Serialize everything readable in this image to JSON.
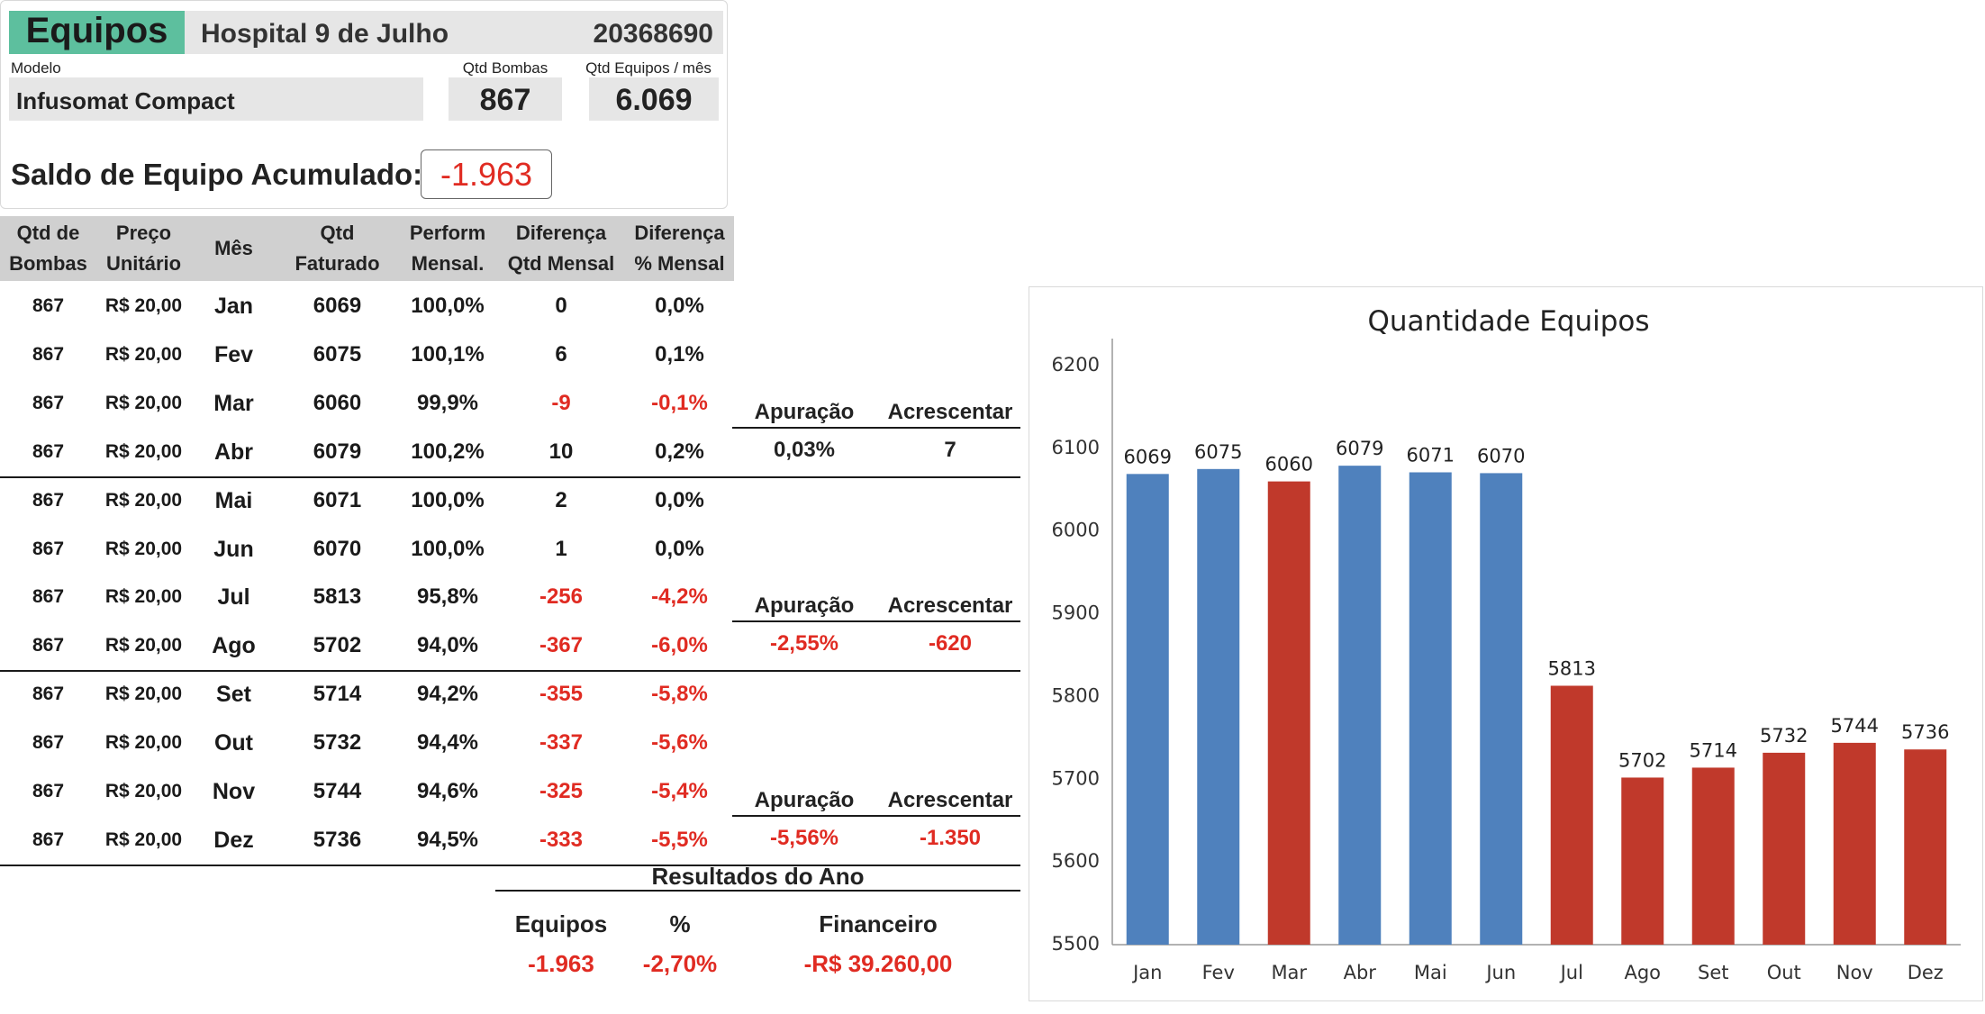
{
  "header": {
    "title": "Equipos",
    "hospital": "Hospital 9 de Julho",
    "code": "20368690",
    "modelo_label": "Modelo",
    "modelo_value": "Infusomat Compact",
    "qtd_bombas_label": "Qtd Bombas",
    "qtd_bombas_value": "867",
    "qtd_equipos_label": "Qtd Equipos / mês",
    "qtd_equipos_value": "6.069",
    "saldo_label": "Saldo de Equipo Acumulado:",
    "saldo_value": "-1.963"
  },
  "table": {
    "headers": [
      [
        "Qtd de",
        "Bombas"
      ],
      [
        "Preço",
        "Unitário"
      ],
      [
        "Mês"
      ],
      [
        "Qtd",
        "Faturado"
      ],
      [
        "Perform",
        "Mensal."
      ],
      [
        "Diferença",
        "Qtd Mensal"
      ],
      [
        "Diferença",
        "% Mensal"
      ]
    ],
    "rows": [
      {
        "bombas": "867",
        "preco": "R$ 20,00",
        "mes": "Jan",
        "qtd": "6069",
        "perf": "100,0%",
        "dif": "0",
        "difp": "0,0%",
        "neg": false
      },
      {
        "bombas": "867",
        "preco": "R$ 20,00",
        "mes": "Fev",
        "qtd": "6075",
        "perf": "100,1%",
        "dif": "6",
        "difp": "0,1%",
        "neg": false
      },
      {
        "bombas": "867",
        "preco": "R$ 20,00",
        "mes": "Mar",
        "qtd": "6060",
        "perf": "99,9%",
        "dif": "-9",
        "difp": "-0,1%",
        "neg": true
      },
      {
        "bombas": "867",
        "preco": "R$ 20,00",
        "mes": "Abr",
        "qtd": "6079",
        "perf": "100,2%",
        "dif": "10",
        "difp": "0,2%",
        "neg": false
      },
      {
        "bombas": "867",
        "preco": "R$ 20,00",
        "mes": "Mai",
        "qtd": "6071",
        "perf": "100,0%",
        "dif": "2",
        "difp": "0,0%",
        "neg": false
      },
      {
        "bombas": "867",
        "preco": "R$ 20,00",
        "mes": "Jun",
        "qtd": "6070",
        "perf": "100,0%",
        "dif": "1",
        "difp": "0,0%",
        "neg": false
      },
      {
        "bombas": "867",
        "preco": "R$ 20,00",
        "mes": "Jul",
        "qtd": "5813",
        "perf": "95,8%",
        "dif": "-256",
        "difp": "-4,2%",
        "neg": true
      },
      {
        "bombas": "867",
        "preco": "R$ 20,00",
        "mes": "Ago",
        "qtd": "5702",
        "perf": "94,0%",
        "dif": "-367",
        "difp": "-6,0%",
        "neg": true
      },
      {
        "bombas": "867",
        "preco": "R$ 20,00",
        "mes": "Set",
        "qtd": "5714",
        "perf": "94,2%",
        "dif": "-355",
        "difp": "-5,8%",
        "neg": true
      },
      {
        "bombas": "867",
        "preco": "R$ 20,00",
        "mes": "Out",
        "qtd": "5732",
        "perf": "94,4%",
        "dif": "-337",
        "difp": "-5,6%",
        "neg": true
      },
      {
        "bombas": "867",
        "preco": "R$ 20,00",
        "mes": "Nov",
        "qtd": "5744",
        "perf": "94,6%",
        "dif": "-325",
        "difp": "-5,4%",
        "neg": true
      },
      {
        "bombas": "867",
        "preco": "R$ 20,00",
        "mes": "Dez",
        "qtd": "5736",
        "perf": "94,5%",
        "dif": "-333",
        "difp": "-5,5%",
        "neg": true
      }
    ]
  },
  "quarters": [
    {
      "apuracao_label": "Apuração",
      "acrescentar_label": "Acrescentar",
      "apuracao": "0,03%",
      "acrescentar": "7",
      "neg": false
    },
    {
      "apuracao_label": "Apuração",
      "acrescentar_label": "Acrescentar",
      "apuracao": "-2,55%",
      "acrescentar": "-620",
      "neg": true
    },
    {
      "apuracao_label": "Apuração",
      "acrescentar_label": "Acrescentar",
      "apuracao": "-5,56%",
      "acrescentar": "-1.350",
      "neg": true
    }
  ],
  "results": {
    "title": "Resultados do Ano",
    "equipos_label": "Equipos",
    "pct_label": "%",
    "fin_label": "Financeiro",
    "equipos_value": "-1.963",
    "pct_value": "-2,70%",
    "fin_value": "-R$ 39.260,00"
  },
  "colors": {
    "accent": "#5dbf9e",
    "positive_bar": "#4f81bd",
    "negative_bar": "#c0392b",
    "negative_text": "#e02b22"
  },
  "chart_data": {
    "type": "bar",
    "title": "Quantidade Equipos",
    "categories": [
      "Jan",
      "Fev",
      "Mar",
      "Abr",
      "Mai",
      "Jun",
      "Jul",
      "Ago",
      "Set",
      "Out",
      "Nov",
      "Dez"
    ],
    "values": [
      6069,
      6075,
      6060,
      6079,
      6071,
      6070,
      5813,
      5702,
      5714,
      5732,
      5744,
      5736
    ],
    "bar_colors": [
      "#4f81bd",
      "#4f81bd",
      "#c0392b",
      "#4f81bd",
      "#4f81bd",
      "#4f81bd",
      "#c0392b",
      "#c0392b",
      "#c0392b",
      "#c0392b",
      "#c0392b",
      "#c0392b"
    ],
    "ylim": [
      5500,
      6200
    ],
    "yticks": [
      5500,
      5600,
      5700,
      5800,
      5900,
      6000,
      6100,
      6200
    ],
    "grid": false,
    "legend": "none",
    "xlabel": "",
    "ylabel": ""
  }
}
